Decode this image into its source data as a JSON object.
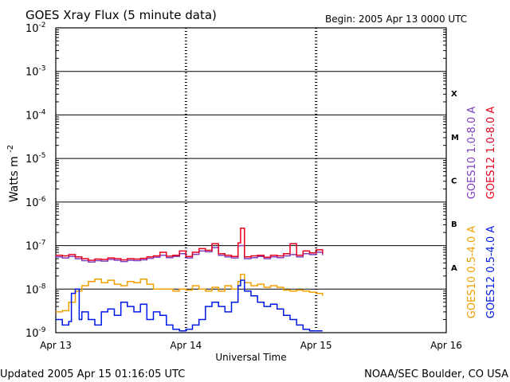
{
  "header": {
    "title": "GOES Xray Flux (5 minute data)",
    "begin": "Begin:  2005 Apr 13 0000 UTC"
  },
  "footer": {
    "updated": "Updated 2005 Apr 15 01:16:05 UTC",
    "credit": "NOAA/SEC Boulder, CO USA"
  },
  "chart_data": {
    "type": "line",
    "title": "GOES Xray Flux (5 minute data)",
    "xlabel": "Universal Time",
    "ylabel": "Watts m",
    "ylabel_sup": "-2",
    "yscale": "log",
    "ylim": [
      1e-09,
      0.01
    ],
    "xlim": [
      "2005-04-13 00:00",
      "2005-04-16 00:00"
    ],
    "grid": true,
    "legend_placement": "right, vertical",
    "x_tick_labels": [
      "Apr 13",
      "Apr 14",
      "Apr 15",
      "Apr 16"
    ],
    "y_tick_labels": [
      {
        "base": "10",
        "exp": "-9"
      },
      {
        "base": "10",
        "exp": "-8"
      },
      {
        "base": "10",
        "exp": "-7"
      },
      {
        "base": "10",
        "exp": "-6"
      },
      {
        "base": "10",
        "exp": "-5"
      },
      {
        "base": "10",
        "exp": "-4"
      },
      {
        "base": "10",
        "exp": "-3"
      },
      {
        "base": "10",
        "exp": "-2"
      }
    ],
    "flare_classes": [
      "A",
      "B",
      "C",
      "M",
      "X"
    ],
    "series": [
      {
        "name": "GOES10 1.0-8.0 A",
        "color": "#7f3fbf",
        "x_days": [
          0.0,
          0.05,
          0.1,
          0.15,
          0.2,
          0.25,
          0.3,
          0.35,
          0.4,
          0.45,
          0.5,
          0.55,
          0.6,
          0.65,
          0.7,
          0.75,
          0.8,
          0.85,
          0.9,
          0.95,
          1.0,
          1.05,
          1.1,
          1.15,
          1.2,
          1.25,
          1.3,
          1.35,
          1.4,
          1.45,
          1.5,
          1.55,
          1.6,
          1.65,
          1.7,
          1.75,
          1.8,
          1.85,
          1.9,
          1.95,
          2.0,
          2.05
        ],
        "values": [
          5.5e-08,
          5.2e-08,
          5.6e-08,
          5e-08,
          4.5e-08,
          4.2e-08,
          4.5e-08,
          4.4e-08,
          4.8e-08,
          4.6e-08,
          4.3e-08,
          4.6e-08,
          4.5e-08,
          4.7e-08,
          5.1e-08,
          5.4e-08,
          6e-08,
          5.3e-08,
          5.6e-08,
          6.5e-08,
          5.2e-08,
          6.3e-08,
          7.5e-08,
          7.2e-08,
          9e-08,
          6e-08,
          5.5e-08,
          5.2e-08,
          1e-07,
          5e-08,
          5.3e-08,
          5.6e-08,
          5e-08,
          5.5e-08,
          5.3e-08,
          5.8e-08,
          6.2e-08,
          5.5e-08,
          6.5e-08,
          6.2e-08,
          7e-08,
          6e-08
        ]
      },
      {
        "name": "GOES12 1.0-8.0 A",
        "color": "#e8001e",
        "x_days": [
          0.0,
          0.05,
          0.1,
          0.15,
          0.2,
          0.25,
          0.3,
          0.35,
          0.4,
          0.45,
          0.5,
          0.55,
          0.6,
          0.65,
          0.7,
          0.75,
          0.8,
          0.85,
          0.9,
          0.95,
          1.0,
          1.05,
          1.1,
          1.15,
          1.2,
          1.25,
          1.3,
          1.35,
          1.4,
          1.42,
          1.45,
          1.5,
          1.55,
          1.6,
          1.65,
          1.7,
          1.75,
          1.8,
          1.85,
          1.9,
          1.95,
          2.0,
          2.05
        ],
        "values": [
          6e-08,
          5.8e-08,
          6.2e-08,
          5.5e-08,
          5e-08,
          4.6e-08,
          4.9e-08,
          4.8e-08,
          5.2e-08,
          5e-08,
          4.7e-08,
          5e-08,
          4.9e-08,
          5.1e-08,
          5.5e-08,
          5.8e-08,
          7e-08,
          5.7e-08,
          6e-08,
          7.5e-08,
          5.6e-08,
          7e-08,
          8.5e-08,
          7.8e-08,
          1.1e-07,
          6.5e-08,
          6e-08,
          5.6e-08,
          1.15e-07,
          2.5e-07,
          5.5e-08,
          5.8e-08,
          6e-08,
          5.4e-08,
          6e-08,
          5.8e-08,
          6.5e-08,
          1.1e-07,
          6e-08,
          7.5e-08,
          6.8e-08,
          8e-08,
          6.5e-08
        ]
      },
      {
        "name": "GOES10 0.5-4.0 A",
        "color": "#f0a000",
        "x_days": [
          0.0,
          0.05,
          0.1,
          0.15,
          0.2,
          0.25,
          0.3,
          0.35,
          0.4,
          0.45,
          0.5,
          0.55,
          0.6,
          0.65,
          0.7,
          0.75,
          0.8,
          0.85,
          0.9,
          0.95,
          1.0,
          1.05,
          1.1,
          1.15,
          1.2,
          1.25,
          1.3,
          1.35,
          1.4,
          1.42,
          1.45,
          1.5,
          1.55,
          1.6,
          1.65,
          1.7,
          1.75,
          1.8,
          1.85,
          1.9,
          1.95,
          2.0,
          2.05
        ],
        "values": [
          3e-09,
          3.2e-09,
          5e-09,
          9e-09,
          1.2e-08,
          1.5e-08,
          1.7e-08,
          1.4e-08,
          1.6e-08,
          1.3e-08,
          1.2e-08,
          1.5e-08,
          1.4e-08,
          1.7e-08,
          1.3e-08,
          1e-08,
          1e-08,
          1e-08,
          9e-09,
          1e-08,
          9.5e-09,
          1.2e-08,
          1e-08,
          9e-09,
          1.1e-08,
          9e-09,
          1.2e-08,
          1e-08,
          1.5e-08,
          2.2e-08,
          1.4e-08,
          1.2e-08,
          1.3e-08,
          1.1e-08,
          1.2e-08,
          1.1e-08,
          9.5e-09,
          9e-09,
          9.5e-09,
          9e-09,
          8.5e-09,
          8e-09,
          7e-09
        ]
      },
      {
        "name": "GOES12 0.5-4.0 A",
        "color": "#0018e8",
        "x_days": [
          0.0,
          0.05,
          0.1,
          0.12,
          0.15,
          0.18,
          0.2,
          0.25,
          0.3,
          0.35,
          0.4,
          0.45,
          0.5,
          0.55,
          0.6,
          0.65,
          0.7,
          0.75,
          0.8,
          0.85,
          0.9,
          0.95,
          1.0,
          1.05,
          1.1,
          1.15,
          1.2,
          1.25,
          1.3,
          1.35,
          1.4,
          1.42,
          1.45,
          1.5,
          1.55,
          1.6,
          1.65,
          1.7,
          1.75,
          1.8,
          1.85,
          1.9,
          1.95,
          2.0,
          2.05
        ],
        "values": [
          2e-09,
          1.5e-09,
          1.8e-09,
          8e-09,
          1e-08,
          2e-09,
          3e-09,
          2e-09,
          1.5e-09,
          3e-09,
          3.5e-09,
          2.5e-09,
          5e-09,
          4e-09,
          3e-09,
          4.5e-09,
          2e-09,
          3e-09,
          2.5e-09,
          1.5e-09,
          1.2e-09,
          1.1e-09,
          1.2e-09,
          1.5e-09,
          2e-09,
          4e-09,
          5e-09,
          4e-09,
          3e-09,
          5e-09,
          1.2e-08,
          1.6e-08,
          9e-09,
          7e-09,
          5e-09,
          4e-09,
          4.5e-09,
          3.5e-09,
          2.5e-09,
          2e-09,
          1.5e-09,
          1.2e-09,
          1.1e-09,
          1.1e-09,
          1.1e-09
        ]
      }
    ]
  }
}
